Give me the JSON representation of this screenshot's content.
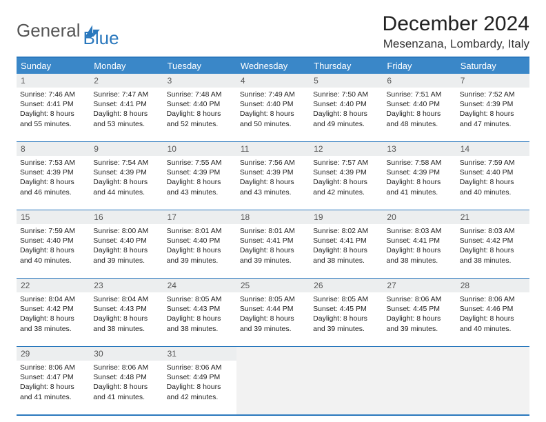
{
  "logo": {
    "text1": "General",
    "text2": "Blue"
  },
  "title": "December 2024",
  "subtitle": "Mesenzana, Lombardy, Italy",
  "colors": {
    "header_bg": "#3a87c8",
    "border": "#2a78bd",
    "datenum_bg": "#eceeef",
    "empty_bg": "#f2f2f2",
    "text": "#222222",
    "logo_gray": "#555555",
    "logo_blue": "#2a78bd"
  },
  "day_names": [
    "Sunday",
    "Monday",
    "Tuesday",
    "Wednesday",
    "Thursday",
    "Friday",
    "Saturday"
  ],
  "weeks": [
    [
      {
        "d": "1",
        "sr": "Sunrise: 7:46 AM",
        "ss": "Sunset: 4:41 PM",
        "dl1": "Daylight: 8 hours",
        "dl2": "and 55 minutes."
      },
      {
        "d": "2",
        "sr": "Sunrise: 7:47 AM",
        "ss": "Sunset: 4:41 PM",
        "dl1": "Daylight: 8 hours",
        "dl2": "and 53 minutes."
      },
      {
        "d": "3",
        "sr": "Sunrise: 7:48 AM",
        "ss": "Sunset: 4:40 PM",
        "dl1": "Daylight: 8 hours",
        "dl2": "and 52 minutes."
      },
      {
        "d": "4",
        "sr": "Sunrise: 7:49 AM",
        "ss": "Sunset: 4:40 PM",
        "dl1": "Daylight: 8 hours",
        "dl2": "and 50 minutes."
      },
      {
        "d": "5",
        "sr": "Sunrise: 7:50 AM",
        "ss": "Sunset: 4:40 PM",
        "dl1": "Daylight: 8 hours",
        "dl2": "and 49 minutes."
      },
      {
        "d": "6",
        "sr": "Sunrise: 7:51 AM",
        "ss": "Sunset: 4:40 PM",
        "dl1": "Daylight: 8 hours",
        "dl2": "and 48 minutes."
      },
      {
        "d": "7",
        "sr": "Sunrise: 7:52 AM",
        "ss": "Sunset: 4:39 PM",
        "dl1": "Daylight: 8 hours",
        "dl2": "and 47 minutes."
      }
    ],
    [
      {
        "d": "8",
        "sr": "Sunrise: 7:53 AM",
        "ss": "Sunset: 4:39 PM",
        "dl1": "Daylight: 8 hours",
        "dl2": "and 46 minutes."
      },
      {
        "d": "9",
        "sr": "Sunrise: 7:54 AM",
        "ss": "Sunset: 4:39 PM",
        "dl1": "Daylight: 8 hours",
        "dl2": "and 44 minutes."
      },
      {
        "d": "10",
        "sr": "Sunrise: 7:55 AM",
        "ss": "Sunset: 4:39 PM",
        "dl1": "Daylight: 8 hours",
        "dl2": "and 43 minutes."
      },
      {
        "d": "11",
        "sr": "Sunrise: 7:56 AM",
        "ss": "Sunset: 4:39 PM",
        "dl1": "Daylight: 8 hours",
        "dl2": "and 43 minutes."
      },
      {
        "d": "12",
        "sr": "Sunrise: 7:57 AM",
        "ss": "Sunset: 4:39 PM",
        "dl1": "Daylight: 8 hours",
        "dl2": "and 42 minutes."
      },
      {
        "d": "13",
        "sr": "Sunrise: 7:58 AM",
        "ss": "Sunset: 4:39 PM",
        "dl1": "Daylight: 8 hours",
        "dl2": "and 41 minutes."
      },
      {
        "d": "14",
        "sr": "Sunrise: 7:59 AM",
        "ss": "Sunset: 4:40 PM",
        "dl1": "Daylight: 8 hours",
        "dl2": "and 40 minutes."
      }
    ],
    [
      {
        "d": "15",
        "sr": "Sunrise: 7:59 AM",
        "ss": "Sunset: 4:40 PM",
        "dl1": "Daylight: 8 hours",
        "dl2": "and 40 minutes."
      },
      {
        "d": "16",
        "sr": "Sunrise: 8:00 AM",
        "ss": "Sunset: 4:40 PM",
        "dl1": "Daylight: 8 hours",
        "dl2": "and 39 minutes."
      },
      {
        "d": "17",
        "sr": "Sunrise: 8:01 AM",
        "ss": "Sunset: 4:40 PM",
        "dl1": "Daylight: 8 hours",
        "dl2": "and 39 minutes."
      },
      {
        "d": "18",
        "sr": "Sunrise: 8:01 AM",
        "ss": "Sunset: 4:41 PM",
        "dl1": "Daylight: 8 hours",
        "dl2": "and 39 minutes."
      },
      {
        "d": "19",
        "sr": "Sunrise: 8:02 AM",
        "ss": "Sunset: 4:41 PM",
        "dl1": "Daylight: 8 hours",
        "dl2": "and 38 minutes."
      },
      {
        "d": "20",
        "sr": "Sunrise: 8:03 AM",
        "ss": "Sunset: 4:41 PM",
        "dl1": "Daylight: 8 hours",
        "dl2": "and 38 minutes."
      },
      {
        "d": "21",
        "sr": "Sunrise: 8:03 AM",
        "ss": "Sunset: 4:42 PM",
        "dl1": "Daylight: 8 hours",
        "dl2": "and 38 minutes."
      }
    ],
    [
      {
        "d": "22",
        "sr": "Sunrise: 8:04 AM",
        "ss": "Sunset: 4:42 PM",
        "dl1": "Daylight: 8 hours",
        "dl2": "and 38 minutes."
      },
      {
        "d": "23",
        "sr": "Sunrise: 8:04 AM",
        "ss": "Sunset: 4:43 PM",
        "dl1": "Daylight: 8 hours",
        "dl2": "and 38 minutes."
      },
      {
        "d": "24",
        "sr": "Sunrise: 8:05 AM",
        "ss": "Sunset: 4:43 PM",
        "dl1": "Daylight: 8 hours",
        "dl2": "and 38 minutes."
      },
      {
        "d": "25",
        "sr": "Sunrise: 8:05 AM",
        "ss": "Sunset: 4:44 PM",
        "dl1": "Daylight: 8 hours",
        "dl2": "and 39 minutes."
      },
      {
        "d": "26",
        "sr": "Sunrise: 8:05 AM",
        "ss": "Sunset: 4:45 PM",
        "dl1": "Daylight: 8 hours",
        "dl2": "and 39 minutes."
      },
      {
        "d": "27",
        "sr": "Sunrise: 8:06 AM",
        "ss": "Sunset: 4:45 PM",
        "dl1": "Daylight: 8 hours",
        "dl2": "and 39 minutes."
      },
      {
        "d": "28",
        "sr": "Sunrise: 8:06 AM",
        "ss": "Sunset: 4:46 PM",
        "dl1": "Daylight: 8 hours",
        "dl2": "and 40 minutes."
      }
    ],
    [
      {
        "d": "29",
        "sr": "Sunrise: 8:06 AM",
        "ss": "Sunset: 4:47 PM",
        "dl1": "Daylight: 8 hours",
        "dl2": "and 41 minutes."
      },
      {
        "d": "30",
        "sr": "Sunrise: 8:06 AM",
        "ss": "Sunset: 4:48 PM",
        "dl1": "Daylight: 8 hours",
        "dl2": "and 41 minutes."
      },
      {
        "d": "31",
        "sr": "Sunrise: 8:06 AM",
        "ss": "Sunset: 4:49 PM",
        "dl1": "Daylight: 8 hours",
        "dl2": "and 42 minutes."
      },
      null,
      null,
      null,
      null
    ]
  ]
}
